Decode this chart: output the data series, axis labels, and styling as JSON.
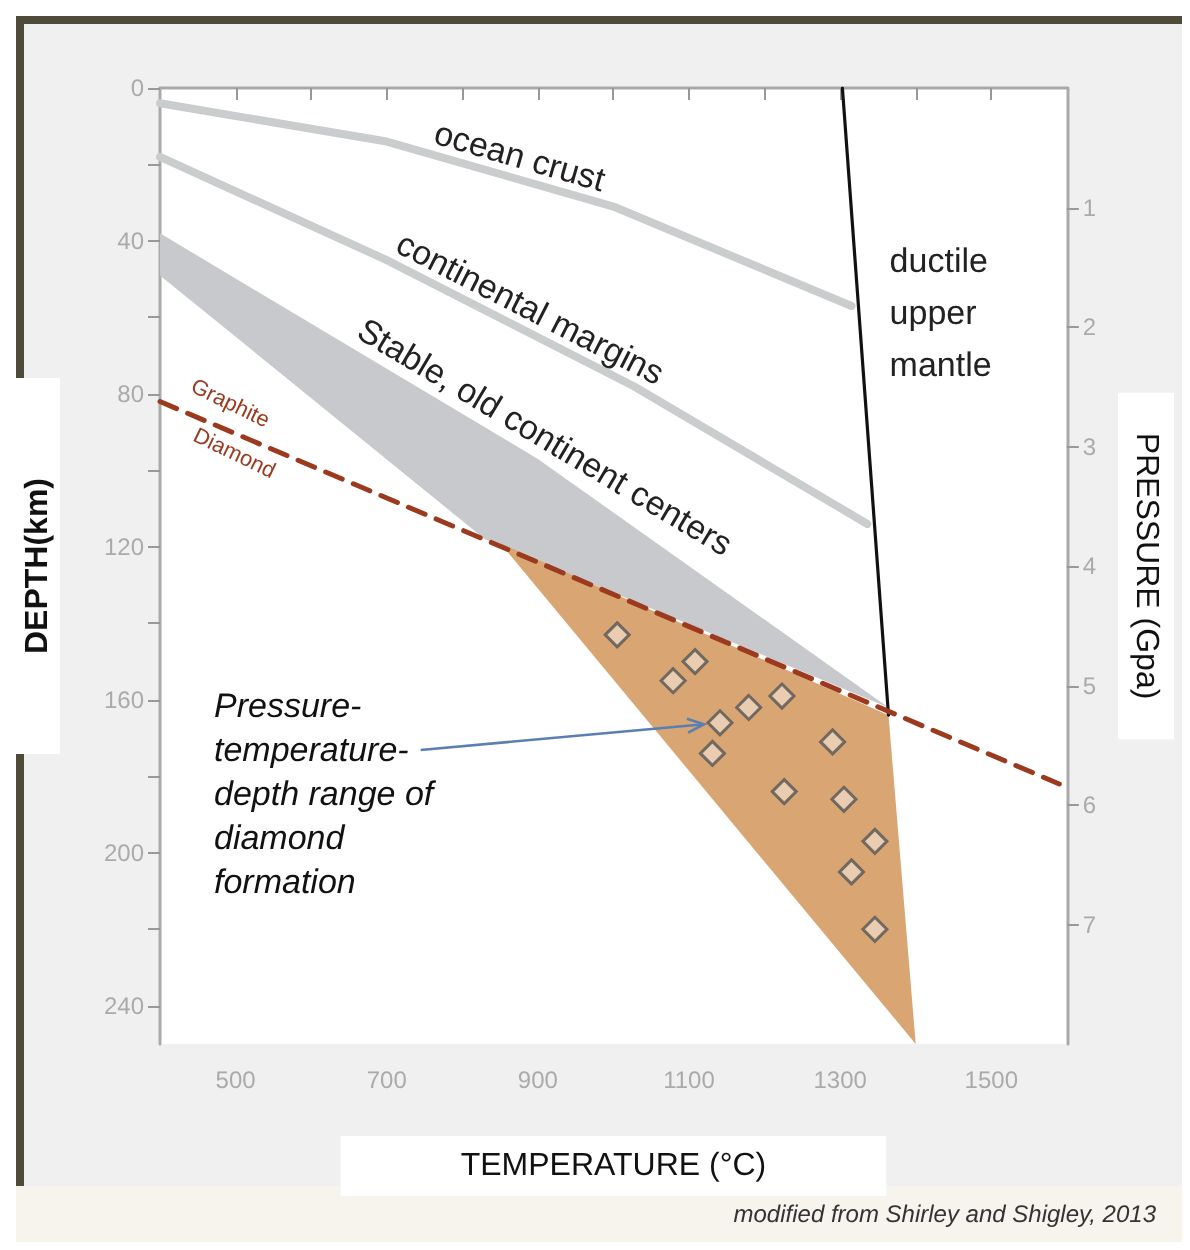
{
  "chart_data": {
    "type": "line",
    "xlabel": "TEMPERATURE (°C)",
    "ylabel": "DEPTH(km)",
    "y2label": "PRESSURE (Gpa)",
    "xlim": [
      400,
      1600
    ],
    "xticks": [
      500,
      {
        "value": 600,
        "label": null
      },
      700,
      {
        "value": 800,
        "label": null
      },
      900,
      {
        "value": 1000,
        "label": null
      },
      1100,
      {
        "value": 1200,
        "label": null
      },
      1300,
      {
        "value": 1400,
        "label": null
      },
      1500
    ],
    "ylim": [
      250,
      0
    ],
    "yticks": [
      0,
      {
        "value": 20,
        "label": null
      },
      40,
      {
        "value": 60,
        "label": null
      },
      80,
      {
        "value": 100,
        "label": null
      },
      120,
      {
        "value": 140,
        "label": null
      },
      160,
      {
        "value": 180,
        "label": null
      },
      200,
      {
        "value": 220,
        "label": null
      },
      240
    ],
    "y2lim": [
      8,
      0
    ],
    "y2ticks": [
      1,
      2,
      3,
      4,
      5,
      6,
      7
    ],
    "series": [
      {
        "name": "Stable, old continent centers",
        "type": "area",
        "color": "#c8c9cc",
        "x": [
          400,
          900,
          1364,
          830,
          400
        ],
        "values": [
          38,
          97,
          162,
          118,
          49
        ]
      },
      {
        "type": "area",
        "color": "#d9a673",
        "x": [
          850,
          1364,
          1400
        ],
        "values": [
          119,
          164,
          250
        ]
      },
      {
        "name": "ocean crust",
        "color": "#c9cdcd",
        "x": [
          400,
          700,
          1000,
          1315
        ],
        "values": [
          4,
          14,
          31,
          57
        ]
      },
      {
        "name": "continental margins",
        "color": "#c9cdcd",
        "x": [
          400,
          700,
          1027,
          1336
        ],
        "values": [
          18,
          45,
          78,
          114
        ]
      },
      {
        "name": "ductile upper mantle",
        "color": "#111111",
        "x": [
          1303,
          1364
        ],
        "values": [
          0,
          164
        ]
      },
      {
        "color": "#9b3a1e",
        "line_style": "dashed",
        "x": [
          400,
          1590
        ],
        "values": [
          82,
          182
        ]
      },
      {
        "type": "scatter",
        "color": "#555555",
        "marker": "diamond",
        "x": [
          1005,
          1079,
          1108,
          1141,
          1179,
          1223,
          1131,
          1290,
          1226,
          1305,
          1346,
          1315,
          1346
        ],
        "values": [
          143,
          155,
          150,
          166,
          162,
          159,
          174,
          171,
          184,
          186,
          197,
          205,
          220
        ]
      }
    ],
    "annotations": [
      "Graphite",
      "Diamond",
      {
        "text": "Pressure-temperature-depth range of diamond formation",
        "x": 1141,
        "y": 166
      },
      "modified from Shirley and Shigley, 2013"
    ]
  }
}
